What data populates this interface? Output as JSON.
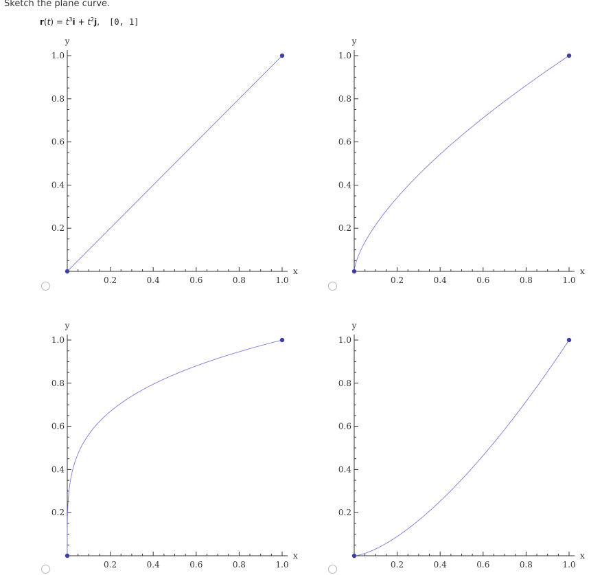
{
  "question": {
    "prompt": "Sketch the plane curve.",
    "formula": {
      "lhs_bold": "r",
      "lhs_paren_open": "(",
      "lhs_var": "t",
      "lhs_paren_close": ") = ",
      "term1_var": "t",
      "term1_exp": "3",
      "term1_unit": "i",
      "plus": " + ",
      "term2_var": "t",
      "term2_exp": "2",
      "term2_unit": "j",
      "comma": ",",
      "interval": "[0, 1]"
    }
  },
  "options": [
    {
      "id": "option-a",
      "selected": false
    },
    {
      "id": "option-b",
      "selected": false
    },
    {
      "id": "option-c",
      "selected": false
    },
    {
      "id": "option-d",
      "selected": false
    }
  ],
  "chart_data": [
    {
      "type": "line",
      "title": "",
      "xlabel": "x",
      "ylabel": "y",
      "xlim": [
        0,
        1
      ],
      "ylim": [
        0,
        1
      ],
      "x_tick_labels": [
        "0.2",
        "0.4",
        "0.6",
        "0.8",
        "1.0"
      ],
      "y_tick_labels": [
        "0.2",
        "0.4",
        "0.6",
        "0.8",
        "1.0"
      ],
      "curve": "y = x",
      "x": [
        0,
        0.25,
        0.5,
        0.75,
        1
      ],
      "y": [
        0,
        0.25,
        0.5,
        0.75,
        1
      ],
      "endpoints": [
        [
          0,
          0
        ],
        [
          1,
          1
        ]
      ],
      "color": "#7b7bd8",
      "point_color": "#3f3fa3"
    },
    {
      "type": "line",
      "title": "",
      "xlabel": "x",
      "ylabel": "y",
      "xlim": [
        0,
        1
      ],
      "ylim": [
        0,
        1
      ],
      "x_tick_labels": [
        "0.2",
        "0.4",
        "0.6",
        "0.8",
        "1.0"
      ],
      "y_tick_labels": [
        "0.2",
        "0.4",
        "0.6",
        "0.8",
        "1.0"
      ],
      "curve": "y = x^(2/3)",
      "x": [
        0,
        0.125,
        0.25,
        0.5,
        0.75,
        1
      ],
      "y": [
        0,
        0.25,
        0.4,
        0.63,
        0.83,
        1
      ],
      "endpoints": [
        [
          0,
          0
        ],
        [
          1,
          1
        ]
      ],
      "color": "#7b7bd8",
      "point_color": "#3f3fa3"
    },
    {
      "type": "line",
      "title": "",
      "xlabel": "x",
      "ylabel": "y",
      "xlim": [
        0,
        1
      ],
      "ylim": [
        0,
        1
      ],
      "x_tick_labels": [
        "0.2",
        "0.4",
        "0.6",
        "0.8",
        "1.0"
      ],
      "y_tick_labels": [
        "0.2",
        "0.4",
        "0.6",
        "0.8",
        "1.0"
      ],
      "curve": "y = x^(1/4)",
      "x": [
        0,
        0.0039,
        0.0625,
        0.25,
        0.5,
        1
      ],
      "y": [
        0,
        0.25,
        0.5,
        0.71,
        0.84,
        1
      ],
      "endpoints": [
        [
          0,
          0
        ],
        [
          1,
          1
        ]
      ],
      "color": "#7b7bd8",
      "point_color": "#3f3fa3"
    },
    {
      "type": "line",
      "title": "",
      "xlabel": "x",
      "ylabel": "y",
      "xlim": [
        0,
        1
      ],
      "ylim": [
        0,
        1
      ],
      "x_tick_labels": [
        "0.2",
        "0.4",
        "0.6",
        "0.8",
        "1.0"
      ],
      "y_tick_labels": [
        "0.2",
        "0.4",
        "0.6",
        "0.8",
        "1.0"
      ],
      "curve": "y = x^(3/2)",
      "x": [
        0,
        0.25,
        0.5,
        0.75,
        1
      ],
      "y": [
        0,
        0.125,
        0.35,
        0.65,
        1
      ],
      "endpoints": [
        [
          0,
          0
        ],
        [
          1,
          1
        ]
      ],
      "color": "#7b7bd8",
      "point_color": "#3f3fa3"
    }
  ]
}
